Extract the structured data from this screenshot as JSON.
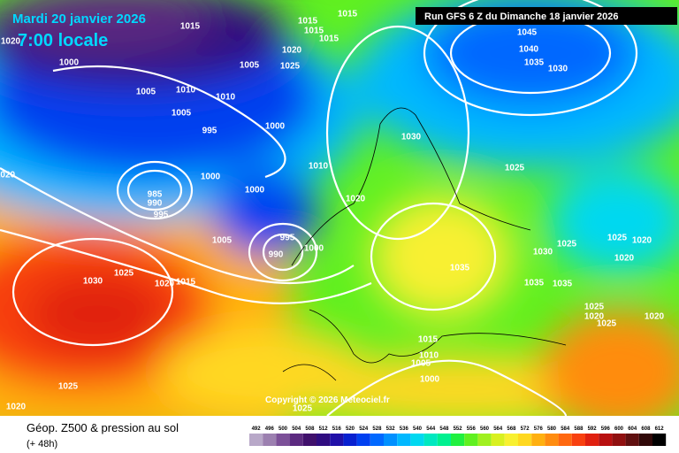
{
  "header": {
    "date": "Mardi 20 janvier 2026",
    "time": "7:00 locale",
    "run": "Run GFS 6 Z du Dimanche 18 janvier 2026"
  },
  "copyright": "Copyright © 2026 Meteociel.fr",
  "footer": {
    "title": "Géop. Z500 & pression au sol",
    "subtitle": "(+ 48h)"
  },
  "isobars": [
    1015,
    1020,
    1000,
    1005,
    1010,
    1005,
    1010,
    995,
    1005,
    1015,
    1015,
    1015,
    1015,
    1020,
    1025,
    1000,
    1010,
    1020,
    1000,
    985,
    990,
    995,
    1000,
    1020,
    1030,
    1025,
    1045,
    1040,
    1035,
    1030,
    1005,
    995,
    990,
    1000,
    1025,
    1030,
    1020,
    1015,
    1035,
    1030,
    1025,
    1035,
    1035,
    1025,
    1020,
    1020,
    1025,
    1020,
    1025,
    1020,
    1015,
    1010,
    1005,
    1000,
    1025,
    1020,
    1025
  ],
  "scale": {
    "values": [
      492,
      496,
      500,
      504,
      508,
      512,
      516,
      520,
      524,
      528,
      532,
      536,
      540,
      544,
      548,
      552,
      556,
      560,
      564,
      568,
      572,
      576,
      580,
      584,
      588,
      592,
      596,
      600,
      604,
      608,
      612
    ],
    "colors": [
      "#b8a8c8",
      "#9c80b0",
      "#7c5098",
      "#5c2a80",
      "#40106c",
      "#300c80",
      "#2010a8",
      "#0820d0",
      "#0040f0",
      "#0068ff",
      "#0090ff",
      "#00b8ff",
      "#00d8f0",
      "#00e8c0",
      "#00f090",
      "#20f040",
      "#60f020",
      "#a0f020",
      "#d8f020",
      "#f8f030",
      "#ffd820",
      "#ffb010",
      "#ff8c10",
      "#ff6810",
      "#f84010",
      "#e02010",
      "#b81010",
      "#901010",
      "#601010",
      "#300808",
      "#000000"
    ]
  }
}
